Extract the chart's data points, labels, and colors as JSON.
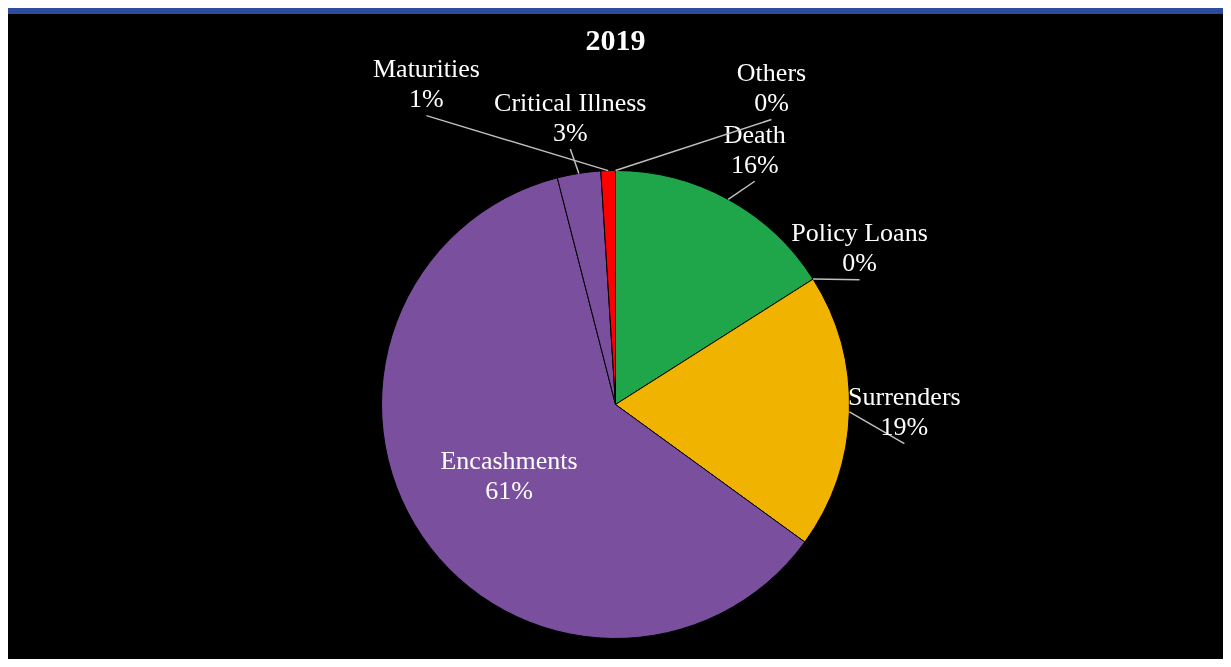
{
  "chart_data": {
    "type": "pie",
    "title": "2019",
    "categories": [
      "Death",
      "Policy Loans",
      "Surrenders",
      "Encashments",
      "Critical Illness",
      "Maturities",
      "Others"
    ],
    "values": [
      16,
      0,
      19,
      61,
      3,
      1,
      0
    ],
    "colors": [
      "#1fa64b",
      "#a6a6a6",
      "#f0b400",
      "#7a4f9e",
      "#7a4f9e",
      "#ff0000",
      "#4472c4"
    ],
    "value_labels": [
      "16%",
      "0%",
      "19%",
      "61%",
      "3%",
      "1%",
      "0%"
    ],
    "legend": false
  }
}
